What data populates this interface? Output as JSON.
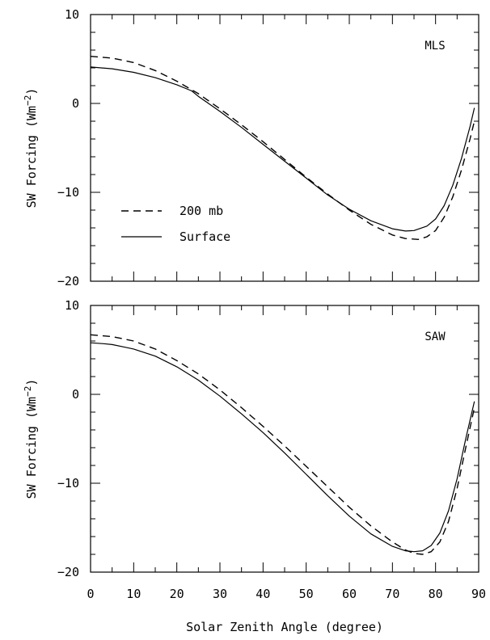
{
  "chart_data": [
    {
      "type": "line",
      "label": "MLS",
      "xlabel": "Solar Zenith Angle (degree)",
      "ylabel": "SW Forcing (Wm",
      "ylabel_sup": "−2",
      "ylabel_close": ")",
      "xlim": [
        0,
        90
      ],
      "ylim": [
        -20,
        10
      ],
      "xticks": [
        0,
        10,
        20,
        30,
        40,
        50,
        60,
        70,
        80,
        90
      ],
      "yticks": [
        -20,
        -10,
        0,
        10
      ],
      "ytick_labels": [
        "−20",
        "−10",
        "0",
        "10"
      ],
      "legend": [
        "200 mb",
        "Surface"
      ],
      "series": [
        {
          "name": "200 mb",
          "style": "dashed",
          "x": [
            0,
            5,
            10,
            15,
            20,
            25,
            30,
            35,
            40,
            45,
            50,
            55,
            60,
            65,
            70,
            73,
            76,
            78,
            80,
            82,
            84,
            86,
            88,
            89
          ],
          "y": [
            5.3,
            5.1,
            4.6,
            3.7,
            2.5,
            1.1,
            -0.6,
            -2.4,
            -4.3,
            -6.3,
            -8.3,
            -10.2,
            -12.0,
            -13.6,
            -14.8,
            -15.2,
            -15.3,
            -15.0,
            -14.3,
            -12.8,
            -10.5,
            -7.5,
            -4.0,
            -2.0
          ]
        },
        {
          "name": "Surface",
          "style": "solid",
          "x": [
            0,
            5,
            10,
            15,
            20,
            23,
            23.5,
            25,
            30,
            35,
            40,
            45,
            50,
            55,
            60,
            65,
            70,
            73,
            75,
            78,
            80,
            82,
            84,
            86,
            88,
            89
          ],
          "y": [
            4.1,
            3.9,
            3.5,
            2.9,
            2.1,
            1.5,
            1.4,
            0.8,
            -0.9,
            -2.7,
            -4.6,
            -6.5,
            -8.4,
            -10.3,
            -11.9,
            -13.2,
            -14.1,
            -14.35,
            -14.3,
            -13.8,
            -13.0,
            -11.5,
            -9.2,
            -6.2,
            -2.6,
            -0.5
          ]
        }
      ]
    },
    {
      "type": "line",
      "label": "SAW",
      "xlabel": "Solar Zenith Angle (degree)",
      "ylabel": "SW Forcing (Wm",
      "ylabel_sup": "−2",
      "ylabel_close": ")",
      "xlim": [
        0,
        90
      ],
      "ylim": [
        -20,
        10
      ],
      "xticks": [
        0,
        10,
        20,
        30,
        40,
        50,
        60,
        70,
        80,
        90
      ],
      "xtick_labels": [
        "0",
        "10",
        "20",
        "30",
        "40",
        "50",
        "60",
        "70",
        "80",
        "90"
      ],
      "yticks": [
        -20,
        -10,
        0,
        10
      ],
      "ytick_labels": [
        "−20",
        "−10",
        "0",
        "10"
      ],
      "series": [
        {
          "name": "200 mb",
          "style": "dashed",
          "x": [
            0,
            5,
            10,
            15,
            20,
            25,
            30,
            35,
            40,
            45,
            50,
            55,
            60,
            65,
            70,
            73,
            75,
            77,
            79,
            81,
            83,
            85,
            87,
            89
          ],
          "y": [
            6.7,
            6.5,
            6.0,
            5.1,
            3.8,
            2.3,
            0.5,
            -1.5,
            -3.6,
            -5.8,
            -8.1,
            -10.4,
            -12.7,
            -14.8,
            -16.6,
            -17.5,
            -17.9,
            -18.0,
            -17.7,
            -16.6,
            -14.3,
            -10.6,
            -6.0,
            -1.5
          ]
        },
        {
          "name": "Surface",
          "style": "solid",
          "x": [
            0,
            3,
            5,
            8,
            10,
            15,
            20,
            25,
            30,
            35,
            40,
            45,
            50,
            55,
            60,
            65,
            70,
            73,
            75,
            77,
            79,
            81,
            83,
            85,
            87,
            89
          ],
          "y": [
            5.8,
            5.7,
            5.6,
            5.3,
            5.1,
            4.3,
            3.1,
            1.6,
            -0.2,
            -2.2,
            -4.3,
            -6.6,
            -9.0,
            -11.4,
            -13.7,
            -15.7,
            -17.1,
            -17.6,
            -17.7,
            -17.6,
            -17.0,
            -15.6,
            -13.1,
            -9.5,
            -5.0,
            -0.8
          ]
        }
      ]
    }
  ]
}
